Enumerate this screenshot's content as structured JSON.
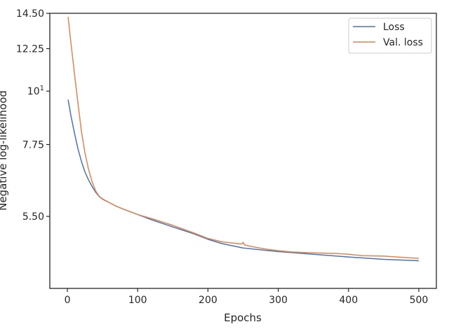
{
  "chart_data": {
    "type": "line",
    "xlabel": "Epochs",
    "ylabel": "Negative log-likelihood",
    "y_scale": "log",
    "xlim": [
      -25,
      525
    ],
    "ylim": [
      3.9,
      14.5
    ],
    "x_ticks": [
      {
        "value": 0,
        "label": "0"
      },
      {
        "value": 100,
        "label": "100"
      },
      {
        "value": 200,
        "label": "200"
      },
      {
        "value": 300,
        "label": "300"
      },
      {
        "value": 400,
        "label": "400"
      },
      {
        "value": 500,
        "label": "500"
      }
    ],
    "y_ticks": [
      {
        "value": 5.5,
        "label": "5.50"
      },
      {
        "value": 7.75,
        "label": "7.75"
      },
      {
        "value": 10,
        "label": "10",
        "sup": "1"
      },
      {
        "value": 12.25,
        "label": "12.25"
      },
      {
        "value": 14.5,
        "label": "14.50"
      }
    ],
    "grid": false,
    "legend_position": "top-right",
    "series": [
      {
        "name": "Loss",
        "color": "#4c72b0",
        "x": [
          1,
          5,
          10,
          15,
          20,
          25,
          30,
          35,
          40,
          45,
          50,
          60,
          70,
          80,
          100,
          120,
          150,
          180,
          200,
          220,
          250,
          280,
          300,
          350,
          400,
          450,
          500
        ],
        "y": [
          9.6,
          8.9,
          8.2,
          7.6,
          7.15,
          6.8,
          6.55,
          6.35,
          6.18,
          6.05,
          5.97,
          5.87,
          5.77,
          5.69,
          5.55,
          5.41,
          5.23,
          5.06,
          4.93,
          4.83,
          4.73,
          4.68,
          4.65,
          4.59,
          4.53,
          4.48,
          4.45
        ]
      },
      {
        "name": "Val. loss",
        "color": "#dd8452",
        "x": [
          1,
          5,
          10,
          15,
          20,
          25,
          30,
          35,
          40,
          45,
          50,
          60,
          70,
          80,
          100,
          120,
          150,
          180,
          200,
          220,
          248,
          250,
          252,
          260,
          280,
          300,
          320,
          350,
          380,
          400,
          420,
          450,
          480,
          500
        ],
        "y": [
          14.25,
          12.6,
          10.9,
          9.45,
          8.25,
          7.45,
          6.9,
          6.5,
          6.22,
          6.06,
          5.98,
          5.87,
          5.77,
          5.69,
          5.55,
          5.44,
          5.27,
          5.08,
          4.95,
          4.87,
          4.82,
          4.86,
          4.8,
          4.77,
          4.71,
          4.67,
          4.64,
          4.62,
          4.61,
          4.59,
          4.56,
          4.55,
          4.52,
          4.5
        ]
      }
    ]
  }
}
